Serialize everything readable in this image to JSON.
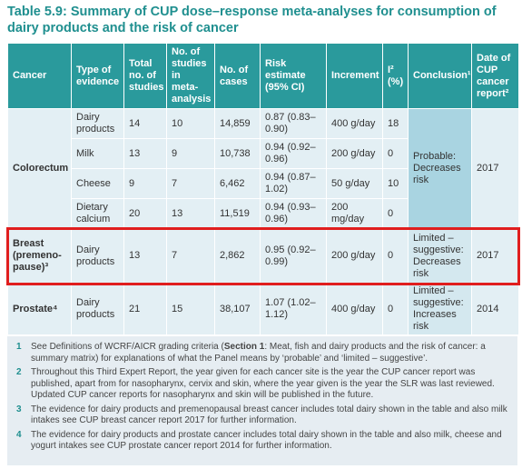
{
  "title": "Table 5.9: Summary of CUP dose–response meta-analyses for consumption of dairy products and the risk of cancer",
  "table": {
    "headers": [
      "Cancer",
      "Type of evidence",
      "Total no. of studies",
      "No. of studies in meta-analysis",
      "No. of cases",
      "Risk estimate (95% CI)",
      "Increment",
      "I² (%)",
      "Conclusion¹",
      "Date of CUP cancer report²"
    ],
    "groups": [
      {
        "cancer": "Colorectum",
        "conclusion": "Probable: Decreases risk",
        "date": 2017,
        "rows": [
          [
            "Dairy products",
            14,
            10,
            "14,859",
            "0.87 (0.83–0.90)",
            "400 g/day",
            18
          ],
          [
            "Milk",
            13,
            9,
            "10,738",
            "0.94 (0.92–0.96)",
            "200 g/day",
            0
          ],
          [
            "Cheese",
            9,
            7,
            "6,462",
            "0.94 (0.87–1.02)",
            "50 g/day",
            10
          ],
          [
            "Dietary calcium",
            20,
            13,
            "11,519",
            "0.94 (0.93–0.96)",
            "200 mg/day",
            0
          ]
        ]
      },
      {
        "cancer": "Breast (premeno-pause)³",
        "conclusion": "Limited – suggestive: Decreases risk",
        "date": 2017,
        "rows": [
          [
            "Dairy products",
            13,
            7,
            "2,862",
            "0.95 (0.92–0.99)",
            "200 g/day",
            0
          ]
        ]
      },
      {
        "cancer": "Prostate⁴",
        "conclusion": "Limited – suggestive: Increases risk",
        "date": 2014,
        "rows": [
          [
            "Dairy products",
            21,
            15,
            "38,107",
            "1.07 (1.02–1.12)",
            "400 g/day",
            0
          ]
        ]
      }
    ]
  },
  "notes": [
    {
      "number": 1,
      "parts": [
        "See Definitions of WCRF/AICR grading criteria (",
        "Section 1",
        ": Meat, fish and dairy products and the risk of cancer: a summary matrix) for explanations of what the Panel means by ‘probable’ and ‘limited – suggestive’."
      ]
    },
    {
      "number": 2,
      "parts": [
        "Throughout this Third Expert Report, the year given for each cancer site is the year the CUP cancer report was published, apart from for nasopharynx, cervix and skin, where the year given is the year the SLR was last reviewed. Updated CUP cancer reports for nasopharynx and skin will be published in the future."
      ]
    },
    {
      "number": 3,
      "parts": [
        "The evidence for dairy products and premenopausal breast cancer includes total dairy shown in the table and also milk intakes see CUP breast cancer report 2017 for further information."
      ]
    },
    {
      "number": 4,
      "parts": [
        "The evidence for dairy products and prostate cancer includes total dairy shown in the table and also milk, cheese and yogurt intakes see CUP prostate cancer report 2014 for further information."
      ]
    }
  ]
}
